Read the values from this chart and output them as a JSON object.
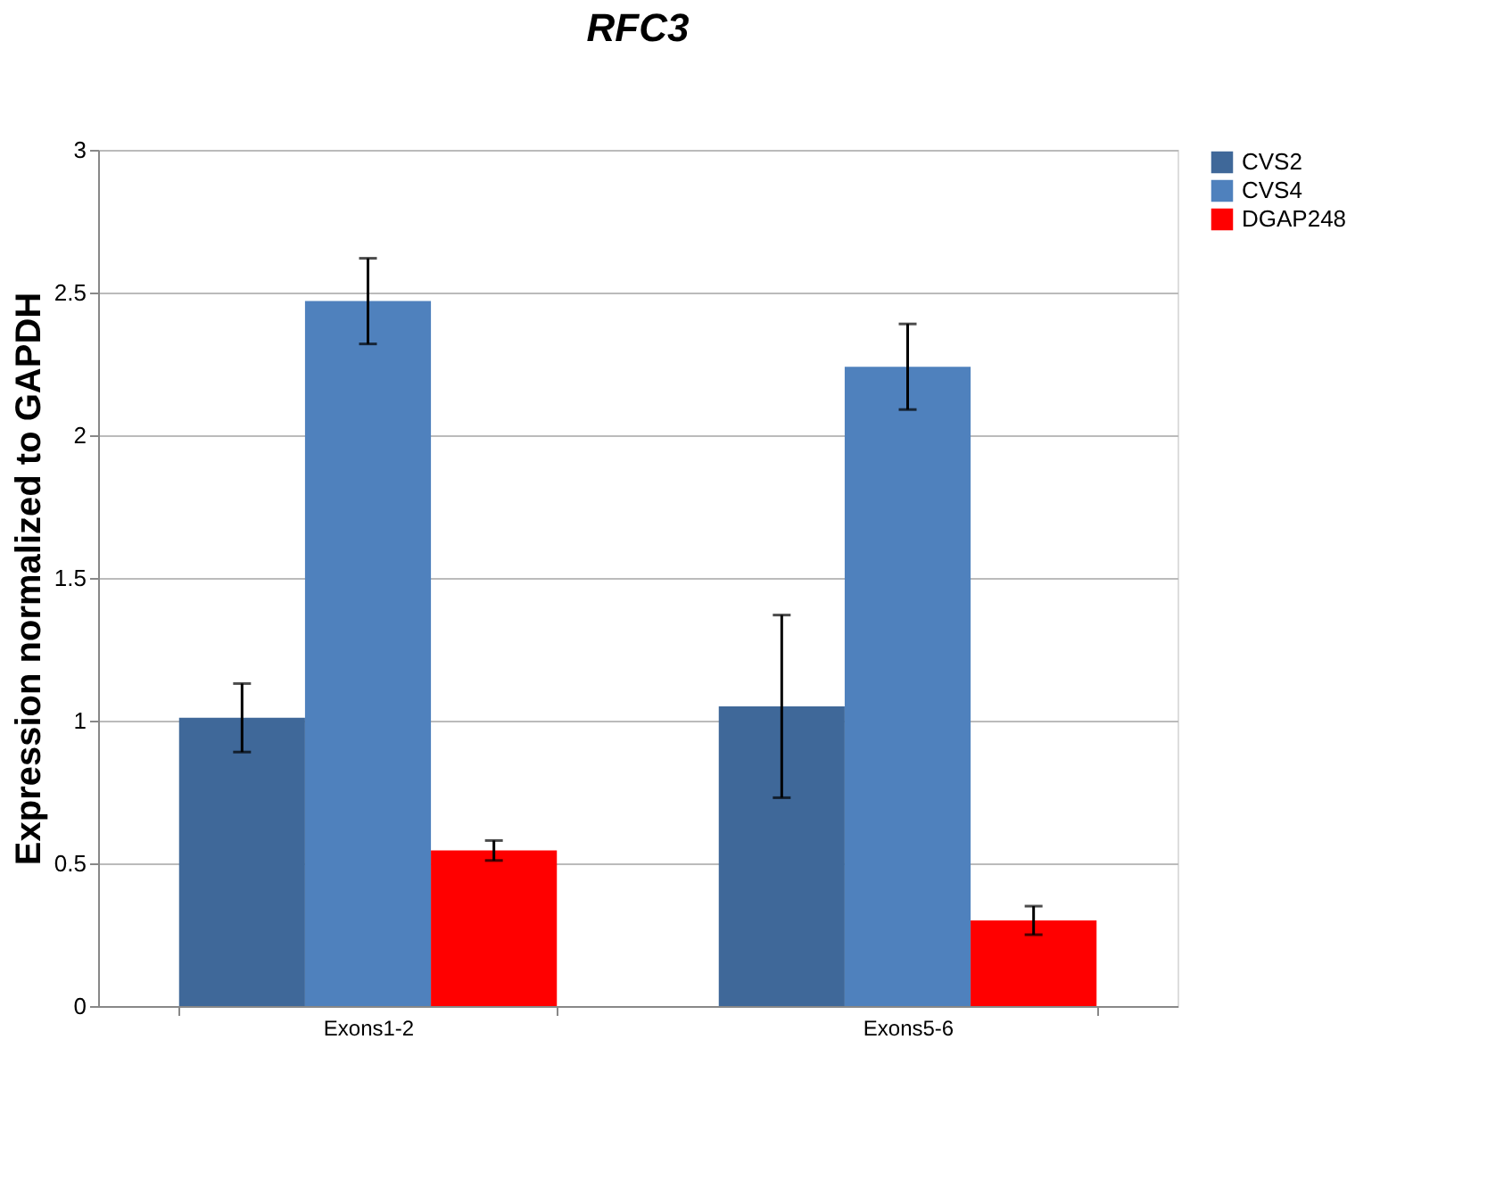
{
  "chart_data": {
    "type": "bar",
    "title": "RFC3",
    "ylabel": "Expression normalized to GAPDH",
    "categories": [
      "Exons1-2",
      "Exons5-6"
    ],
    "series": [
      {
        "name": "CVS2",
        "color": "#3f6899",
        "values": [
          1.01,
          1.05
        ],
        "errors": [
          0.12,
          0.32
        ]
      },
      {
        "name": "CVS4",
        "color": "#4f81bd",
        "values": [
          2.47,
          2.24
        ],
        "errors": [
          0.15,
          0.15
        ]
      },
      {
        "name": "DGAP248",
        "color": "#ff0000",
        "values": [
          0.545,
          0.3
        ],
        "errors": [
          0.035,
          0.05
        ]
      }
    ],
    "ylim": [
      0,
      3
    ],
    "yticks": [
      0,
      0.5,
      1,
      1.5,
      2,
      2.5,
      3
    ],
    "grid": "y",
    "legend": "right"
  }
}
